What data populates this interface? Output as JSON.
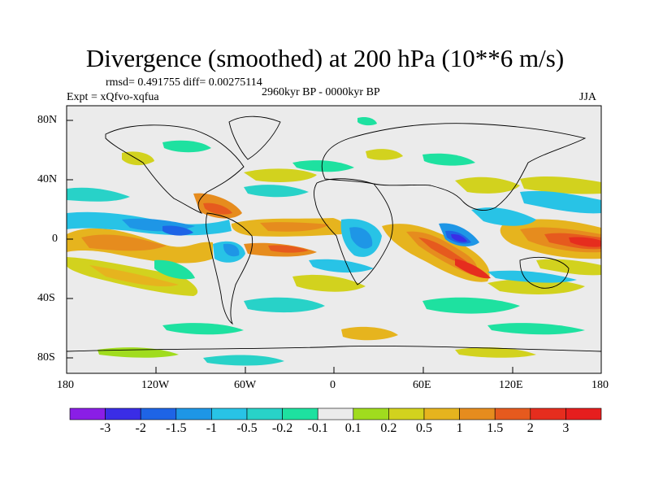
{
  "title": "Divergence (smoothed) at 200 hPa (10**6 m/s)",
  "stats": "rmsd= 0.491755 diff= 0.00275114",
  "experiment": "Expt = xQfvo-xqfua",
  "period": "2960kyr BP - 0000kyr BP",
  "season": "JJA",
  "lat_labels": [
    "80N",
    "40N",
    "0",
    "40S",
    "80S"
  ],
  "lon_labels": [
    "180",
    "120W",
    "60W",
    "0",
    "60E",
    "120E",
    "180"
  ],
  "colorbar": {
    "labels": [
      "-3",
      "-2",
      "-1.5",
      "-1",
      "-0.5",
      "-0.2",
      "-0.1",
      "0.1",
      "0.2",
      "0.5",
      "1",
      "1.5",
      "2",
      "3"
    ],
    "colors": [
      "#8a1ee6",
      "#3a2de6",
      "#1e64e6",
      "#1e96e6",
      "#28c3e6",
      "#28d2c8",
      "#1ee1a0",
      "#ebebeb",
      "#a0dc1e",
      "#d2d21e",
      "#e6b41e",
      "#e68c1e",
      "#e65a1e",
      "#e62d1e",
      "#e61e1e"
    ]
  }
}
